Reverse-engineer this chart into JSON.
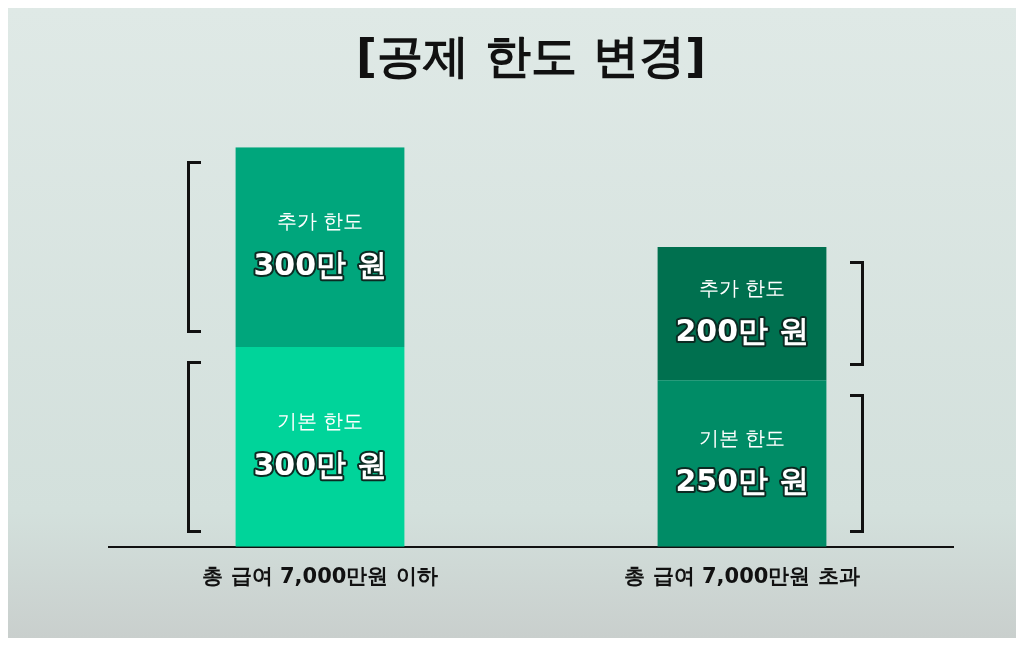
{
  "chart_data": {
    "type": "bar",
    "title": "[공제 한도 변경]",
    "categories": [
      "총 급여 7,000만원 이하",
      "총 급여 7,000만원 초과"
    ],
    "stacked": true,
    "grid": false,
    "legend": false,
    "tick_labels": "x",
    "series": [
      {
        "name": "기본 한도",
        "colors": [
          "#00d49a",
          "#008c66"
        ],
        "values": [
          300,
          250
        ],
        "value_labels": [
          "300만 원",
          "250만 원"
        ]
      },
      {
        "name": "추가 한도",
        "colors": [
          "#00a67c",
          "#00704f"
        ],
        "values": [
          300,
          200
        ],
        "value_labels": [
          "300만 원",
          "200만 원"
        ]
      }
    ]
  }
}
